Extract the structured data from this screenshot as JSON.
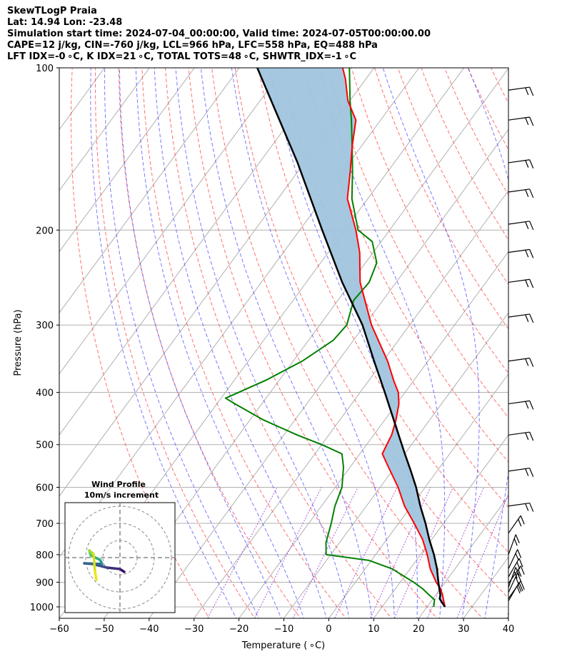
{
  "header": {
    "line1": "SkewTLogP Praia",
    "line2": "Lat: 14.94   Lon: -23.48",
    "line3": "Simulation start time: 2024-07-04_00:00:00, Valid time: 2024-07-05T00:00:00.00",
    "line4": "CAPE=12 j/kg, CIN=-760 j/kg, LCL=966 hPa, LFC=558 hPa, EQ=488 hPa",
    "line5": "LFT IDX=-0 ∘C, K IDX=21 ∘C, TOTAL TOTS=48 ∘C, SHWTR_IDX=-1 ∘C"
  },
  "colors": {
    "temperature": "#ff0000",
    "dewpoint": "#008000",
    "parcel": "#000000",
    "cape_fill": "#a0c4de",
    "dry_adiabat": "#ff4040",
    "moist_adiabat": "#4040ff",
    "mixing_ratio": "#9933cc",
    "isotherm": "#b0b0b0"
  },
  "chart_data": {
    "type": "skewt",
    "xlabel": "Temperature ( ∘C)",
    "ylabel": "Pressure (hPa)",
    "xlim": [
      -60,
      40
    ],
    "ylim": [
      1050,
      100
    ],
    "y_scale": "log",
    "x_ticks": [
      "−60",
      "−50",
      "−40",
      "−30",
      "−20",
      "−10",
      "0",
      "10",
      "20",
      "30",
      "40"
    ],
    "y_ticks": [
      1000,
      900,
      800,
      700,
      600,
      500,
      400,
      300,
      200,
      100
    ],
    "grid": true,
    "temperature": {
      "p": [
        1000,
        970,
        950,
        925,
        900,
        850,
        800,
        750,
        700,
        650,
        600,
        550,
        520,
        500,
        480,
        450,
        420,
        400,
        380,
        350,
        300,
        250,
        220,
        200,
        175,
        155,
        140,
        125,
        115,
        105,
        100
      ],
      "t": [
        24,
        22.5,
        21.5,
        20,
        18,
        14.5,
        11.5,
        8,
        3.5,
        -1.5,
        -6,
        -11.5,
        -15,
        -15.5,
        -16,
        -17.5,
        -19.5,
        -21.5,
        -24.5,
        -29,
        -38.5,
        -48,
        -53,
        -57.5,
        -64.5,
        -68.5,
        -72,
        -75.5,
        -80.5,
        -84.5,
        -87
      ]
    },
    "dewpoint": {
      "p": [
        1000,
        970,
        950,
        925,
        900,
        850,
        820,
        800,
        780,
        760,
        700,
        650,
        600,
        550,
        520,
        500,
        480,
        450,
        420,
        410,
        380,
        350,
        320,
        300,
        270,
        250,
        230,
        210,
        200,
        175,
        155,
        140,
        125,
        115,
        100
      ],
      "t": [
        21.5,
        20.5,
        18.5,
        16,
        13,
        6,
        -0.5,
        -11,
        -12,
        -13,
        -15,
        -17,
        -18.5,
        -21.5,
        -24,
        -30,
        -37,
        -47,
        -56,
        -59,
        -53,
        -48,
        -44.5,
        -44,
        -46.5,
        -46,
        -47.5,
        -52,
        -57,
        -63.5,
        -68,
        -72,
        -76.5,
        -80,
        -85.5
      ]
    },
    "parcel": {
      "p": [
        1000,
        966,
        950,
        900,
        850,
        800,
        750,
        700,
        650,
        600,
        558,
        520,
        488,
        450,
        400,
        350,
        300,
        250,
        200,
        150,
        100
      ],
      "t": [
        24,
        21.5,
        21,
        18.5,
        16,
        13,
        9.5,
        6,
        2,
        -2,
        -6,
        -10,
        -13.5,
        -18,
        -24.5,
        -32,
        -40.5,
        -52,
        -65,
        -81.5,
        -106
      ]
    },
    "wind_barbs": {
      "p": [
        965,
        975,
        940,
        920,
        905,
        880,
        850,
        800,
        730,
        650,
        560,
        480,
        420,
        350,
        290,
        250,
        220,
        195,
        170,
        150,
        125,
        110
      ]
    },
    "hodograph": {
      "title": "Wind Profile",
      "subtitle": "10m/s increment",
      "ring_step_ms": 10,
      "rings": 3
    }
  }
}
